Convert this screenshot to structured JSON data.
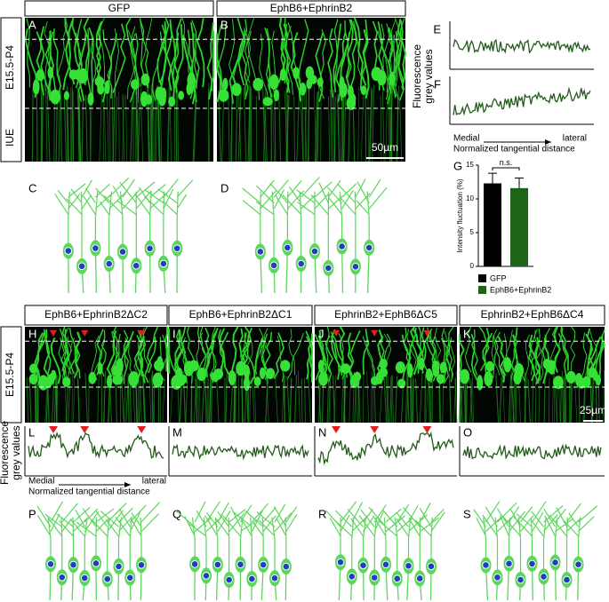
{
  "top": {
    "columns": [
      "GFP",
      "EphB6+EphrinB2"
    ],
    "row_label": [
      "IUE",
      "E15.5-P4"
    ],
    "image_panels": [
      "A",
      "B"
    ],
    "diagram_panels": [
      "C",
      "D"
    ],
    "trace_panels": [
      "E",
      "F"
    ],
    "scale_bar": "50µm",
    "trace_y_label": [
      "Fluorescence",
      "grey values"
    ],
    "trace_x": {
      "left": "Medial",
      "right": "lateral",
      "label": "Normalized tangential distance"
    }
  },
  "chart_g": {
    "type": "bar",
    "panel": "G",
    "y_label": "Intensity fluctuation (%)",
    "categories": [
      "GFP",
      "EphB6+EphrinB2"
    ],
    "values": [
      12.3,
      11.6
    ],
    "errors": [
      1.5,
      1.5
    ],
    "colors": [
      "#000000",
      "#1e6416"
    ],
    "ylim": [
      0,
      15
    ],
    "yticks": [
      0,
      5,
      10,
      15
    ],
    "annotation": "n.s."
  },
  "bottom": {
    "columns": [
      "EphB6+EphrinB2ΔC2",
      "EphB6+EphrinB2ΔC1",
      "EphrinB2+EphB6ΔC5",
      "EphrinB2+EphB6ΔC4"
    ],
    "row_label": "E15.5-P4",
    "image_panels": [
      "H",
      "I",
      "J",
      "K"
    ],
    "trace_panels": [
      "L",
      "M",
      "N",
      "O"
    ],
    "diagram_panels": [
      "P",
      "Q",
      "R",
      "S"
    ],
    "scale_bar": "25µm",
    "trace_y_label": [
      "Fluorescence",
      "grey values"
    ],
    "trace_x": {
      "left": "Medial",
      "right": "lateral",
      "label": "Normalized tangential distance"
    }
  }
}
